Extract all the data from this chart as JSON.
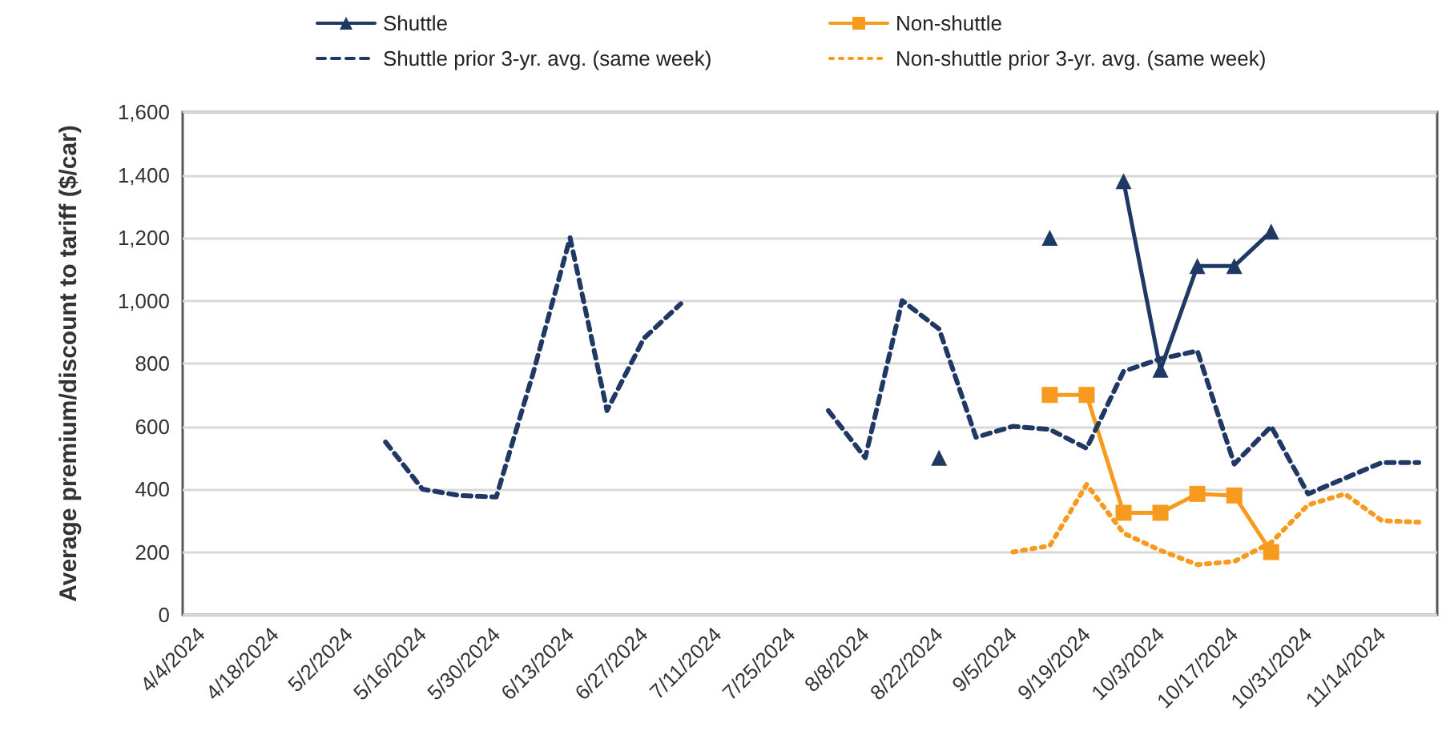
{
  "chart_data": {
    "type": "line",
    "ylabel": "Average premium/discount to tariff ($/car)",
    "categories": [
      "4/4/2024",
      null,
      "4/18/2024",
      null,
      "5/2/2024",
      null,
      "5/16/2024",
      null,
      "5/30/2024",
      null,
      "6/13/2024",
      null,
      "6/27/2024",
      null,
      "7/11/2024",
      null,
      "7/25/2024",
      null,
      "8/8/2024",
      null,
      "8/22/2024",
      null,
      "9/5/2024",
      null,
      "9/19/2024",
      null,
      "10/3/2024",
      null,
      "10/17/2024",
      null,
      "10/31/2024",
      null,
      "11/14/2024",
      null
    ],
    "series": [
      {
        "name": "Shuttle",
        "color": "#1f3864",
        "marker": "triangle",
        "line_style": "solid",
        "values": [
          null,
          null,
          null,
          null,
          null,
          null,
          null,
          null,
          null,
          null,
          null,
          null,
          null,
          null,
          null,
          null,
          null,
          null,
          null,
          null,
          500,
          null,
          null,
          1200,
          null,
          1380,
          780,
          1110,
          1110,
          1220,
          null,
          null,
          null,
          null
        ]
      },
      {
        "name": "Non-shuttle",
        "color": "#f79a1e",
        "marker": "square",
        "line_style": "solid",
        "values": [
          null,
          null,
          null,
          null,
          null,
          null,
          null,
          null,
          null,
          null,
          null,
          null,
          null,
          null,
          null,
          null,
          null,
          null,
          null,
          null,
          null,
          null,
          null,
          700,
          700,
          325,
          325,
          385,
          380,
          200,
          null,
          null,
          null,
          null
        ]
      },
      {
        "name": "Shuttle prior 3-yr. avg. (same week)",
        "color": "#1f3864",
        "marker": "none",
        "line_style": "dashed",
        "values": [
          null,
          null,
          null,
          null,
          null,
          550,
          400,
          380,
          375,
          770,
          1200,
          650,
          880,
          990,
          null,
          null,
          null,
          650,
          500,
          1000,
          910,
          565,
          600,
          590,
          530,
          775,
          815,
          840,
          480,
          600,
          385,
          435,
          485,
          485
        ]
      },
      {
        "name": "Non-shuttle prior 3-yr. avg. (same week)",
        "color": "#f79a1e",
        "marker": "none",
        "line_style": "dotted",
        "values": [
          null,
          null,
          null,
          null,
          null,
          null,
          null,
          null,
          null,
          null,
          null,
          null,
          null,
          null,
          null,
          null,
          null,
          null,
          null,
          null,
          null,
          null,
          200,
          220,
          415,
          260,
          205,
          160,
          170,
          230,
          350,
          385,
          300,
          295
        ]
      }
    ],
    "ylim": [
      0,
      1600
    ],
    "yticks": [
      0,
      200,
      400,
      600,
      800,
      {
        "value": 1000,
        "label": "1,000"
      },
      {
        "value": 1200,
        "label": "1,200"
      },
      {
        "value": 1400,
        "label": "1,400"
      },
      {
        "value": 1600,
        "label": "1,600"
      }
    ],
    "grid": "y",
    "legend": "top"
  }
}
